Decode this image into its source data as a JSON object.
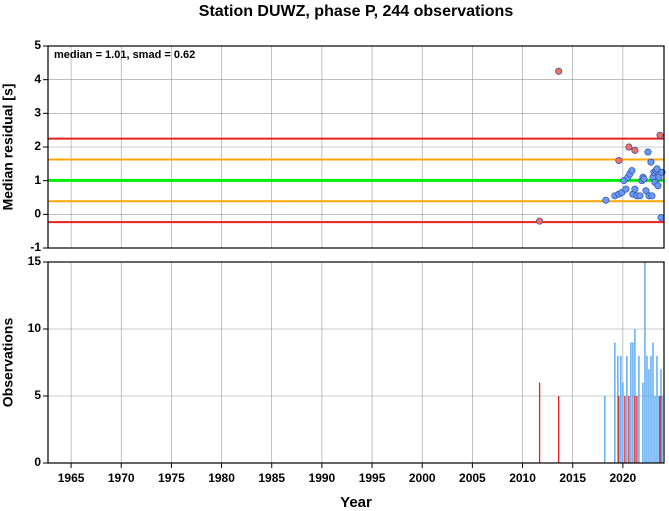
{
  "chart_data": [
    {
      "type": "scatter",
      "title": "Station DUWZ, phase P, 244 observations",
      "ylabel": "Median residual [s]",
      "annotation": "median = 1.01, smad = 0.62",
      "xlim": [
        1962.7,
        2024.1
      ],
      "ylim": [
        -1,
        5
      ],
      "xticks": [
        1965,
        1970,
        1975,
        1980,
        1985,
        1990,
        1995,
        2000,
        2005,
        2010,
        2015,
        2020
      ],
      "yticks": [
        -1,
        0,
        1,
        2,
        3,
        4,
        5
      ],
      "grid": true,
      "reference_lines": [
        {
          "value": 2.25,
          "color": "#e8211b"
        },
        {
          "value": 1.63,
          "color": "#ffa500"
        },
        {
          "value": 1.01,
          "color": "#00ee00"
        },
        {
          "value": 0.39,
          "color": "#ffa500"
        },
        {
          "value": -0.23,
          "color": "#e8211b"
        }
      ],
      "series": [
        {
          "color": "#f07060",
          "x": [
            2013.6,
            2011.7,
            2020.6,
            2021.2,
            2023.7,
            2019.6
          ],
          "values": [
            4.25,
            -0.2,
            2.0,
            1.9,
            2.35,
            1.6
          ]
        },
        {
          "color": "#6a9af0",
          "x": [
            2018.3,
            2019.2,
            2019.6,
            2019.9,
            2020.1,
            2020.3,
            2020.5,
            2020.7,
            2020.9,
            2021.0,
            2021.2,
            2021.4,
            2021.7,
            2021.9,
            2022.0,
            2022.1,
            2022.3,
            2022.5,
            2022.6,
            2022.8,
            2022.9,
            2023.0,
            2023.1,
            2023.2,
            2023.3,
            2023.4,
            2023.5,
            2023.6,
            2023.8,
            2023.9
          ],
          "values": [
            0.42,
            0.55,
            0.6,
            0.65,
            1.0,
            0.75,
            1.1,
            1.2,
            1.3,
            0.6,
            0.75,
            0.55,
            0.55,
            1.0,
            1.1,
            1.05,
            0.7,
            1.85,
            0.55,
            1.55,
            0.55,
            1.1,
            1.25,
            0.95,
            1.3,
            1.35,
            0.85,
            1.1,
            -0.1,
            1.25
          ]
        }
      ]
    },
    {
      "type": "bar",
      "ylabel": "Observations",
      "xlabel": "Year",
      "xlim": [
        1962.7,
        2024.1
      ],
      "ylim": [
        0,
        15
      ],
      "xticks": [
        1965,
        1970,
        1975,
        1980,
        1985,
        1990,
        1995,
        2000,
        2005,
        2010,
        2015,
        2020
      ],
      "yticks": [
        0,
        5,
        10,
        15
      ],
      "grid": true,
      "series": [
        {
          "color": "#4aa0f0",
          "x": [
            2018.2,
            2019.2,
            2019.5,
            2019.8,
            2020.0,
            2020.4,
            2020.8,
            2021.0,
            2021.2,
            2021.6,
            2022.0,
            2022.2,
            2022.4,
            2022.6,
            2022.8,
            2023.0,
            2023.2,
            2023.4,
            2023.6,
            2023.8,
            2023.9
          ],
          "values": [
            5,
            9,
            8,
            8,
            6,
            8,
            9,
            9,
            10,
            8,
            6,
            15,
            8,
            7,
            8,
            9,
            5,
            8,
            5,
            7,
            5
          ]
        },
        {
          "color": "#e8211b",
          "x": [
            2011.7,
            2013.6,
            2019.6,
            2020.2,
            2020.6,
            2021.2,
            2021.4,
            2023.7
          ],
          "values": [
            6,
            5,
            5,
            5,
            5,
            5,
            5,
            5
          ]
        }
      ]
    }
  ]
}
